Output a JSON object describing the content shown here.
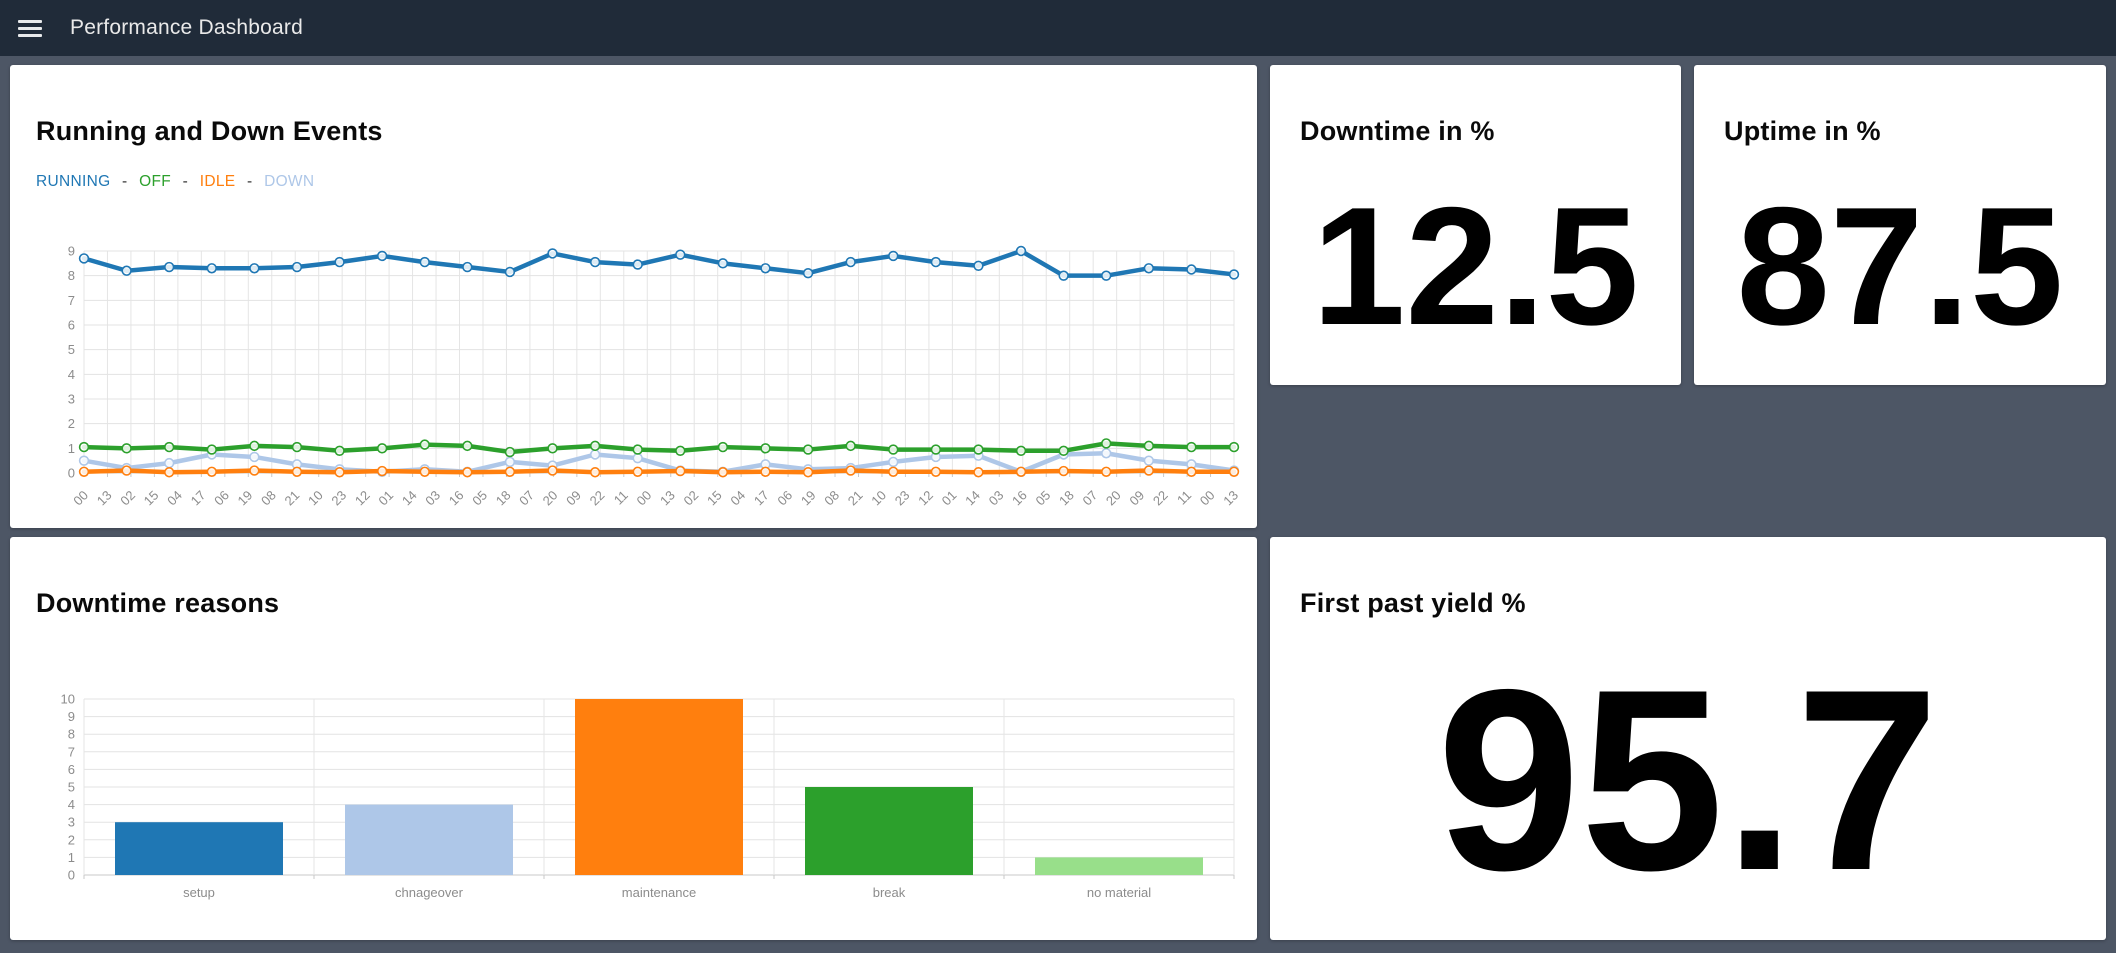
{
  "navbar": {
    "title": "Performance Dashboard",
    "menu_icon": "hamburger-icon"
  },
  "cards": {
    "events": {
      "title": "Running and Down Events",
      "separator": "-",
      "legend": [
        {
          "label": "RUNNING",
          "color": "#1f77b4"
        },
        {
          "label": "OFF",
          "color": "#2ca02c"
        },
        {
          "label": "IDLE",
          "color": "#ff7f0e"
        },
        {
          "label": "DOWN",
          "color": "#aec7e8"
        }
      ]
    },
    "downtime": {
      "title": "Downtime in %",
      "value": "12.5"
    },
    "uptime": {
      "title": "Uptime in %",
      "value": "87.5"
    },
    "reasons": {
      "title": "Downtime reasons"
    },
    "fpy": {
      "title": "First past yield %",
      "value": "95.7"
    }
  },
  "theme": {
    "page_background": "#4d5665",
    "navbar_background": "#202b39",
    "card_background": "#ffffff",
    "grid_color": "#e5e5e5",
    "axis_line_color": "#c9c9c9",
    "axis_label_color": "#8c8c8c"
  },
  "chart_data": [
    {
      "type": "line",
      "title": "Running and Down Events",
      "xlabel": "",
      "ylabel": "",
      "ylim": [
        0,
        9
      ],
      "y_tick_step": 1,
      "grid": true,
      "legend_position": "top-left",
      "x_tick_labels": [
        "00",
        "13",
        "02",
        "15",
        "04",
        "17",
        "06",
        "19",
        "08",
        "21",
        "10",
        "23",
        "12",
        "01",
        "14",
        "03",
        "16",
        "05",
        "18",
        "07",
        "20",
        "09",
        "22",
        "11",
        "00",
        "13",
        "02",
        "15",
        "04",
        "17",
        "06",
        "19",
        "08",
        "21",
        "10",
        "23",
        "12",
        "01",
        "14",
        "03",
        "16",
        "05",
        "18",
        "07",
        "20",
        "09",
        "22",
        "11",
        "00",
        "13"
      ],
      "series": [
        {
          "name": "RUNNING",
          "color": "#1f77b4",
          "values": [
            8.7,
            8.2,
            8.35,
            8.3,
            8.3,
            8.35,
            8.55,
            8.8,
            8.55,
            8.35,
            8.15,
            8.9,
            8.55,
            8.45,
            8.85,
            8.5,
            8.3,
            8.1,
            8.55,
            8.8,
            8.55,
            8.4,
            9.0,
            8.0,
            8.0,
            8.3,
            8.25,
            8.05
          ]
        },
        {
          "name": "OFF",
          "color": "#2ca02c",
          "values": [
            1.05,
            1.0,
            1.05,
            0.95,
            1.1,
            1.05,
            0.9,
            1.0,
            1.15,
            1.1,
            0.85,
            1.0,
            1.1,
            0.95,
            0.9,
            1.05,
            1.0,
            0.95,
            1.1,
            0.95,
            0.95,
            0.95,
            0.9,
            0.9,
            1.2,
            1.1,
            1.05,
            1.05
          ]
        },
        {
          "name": "IDLE",
          "color": "#ff7f0e",
          "values": [
            0.05,
            0.1,
            0.03,
            0.05,
            0.1,
            0.05,
            0.03,
            0.08,
            0.05,
            0.03,
            0.05,
            0.1,
            0.03,
            0.05,
            0.08,
            0.03,
            0.05,
            0.03,
            0.1,
            0.05,
            0.05,
            0.03,
            0.05,
            0.08,
            0.05,
            0.1,
            0.05,
            0.05
          ]
        },
        {
          "name": "DOWN",
          "color": "#aec7e8",
          "values": [
            0.5,
            0.2,
            0.4,
            0.75,
            0.65,
            0.35,
            0.15,
            0.05,
            0.15,
            0.05,
            0.45,
            0.3,
            0.75,
            0.6,
            0.1,
            0.05,
            0.35,
            0.15,
            0.2,
            0.45,
            0.65,
            0.7,
            0.05,
            0.75,
            0.8,
            0.5,
            0.35,
            0.1
          ]
        }
      ]
    },
    {
      "type": "bar",
      "title": "Downtime reasons",
      "xlabel": "",
      "ylabel": "",
      "categories": [
        "setup",
        "chnageover",
        "maintenance",
        "break",
        "no material"
      ],
      "values": [
        3,
        4,
        10,
        5,
        1
      ],
      "bar_colors": [
        "#1f77b4",
        "#aec7e8",
        "#ff7f0e",
        "#2ca02c",
        "#98df8a"
      ],
      "ylim": [
        0,
        10
      ],
      "y_tick_step": 1,
      "grid": true
    }
  ]
}
